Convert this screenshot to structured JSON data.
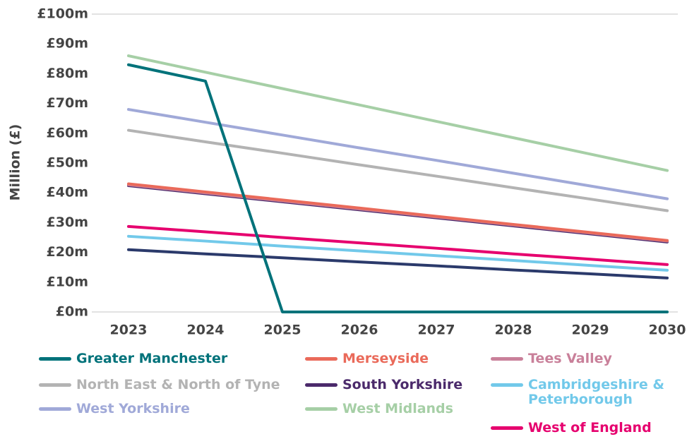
{
  "chart_data": {
    "type": "line",
    "y_label": "Million (£)",
    "categories": [
      "2023",
      "2024",
      "2025",
      "2026",
      "2027",
      "2028",
      "2029",
      "2030"
    ],
    "ylim": [
      0,
      100
    ],
    "yticks": [
      {
        "value": 0,
        "label": "£0m"
      },
      {
        "value": 10,
        "label": "£10m"
      },
      {
        "value": 20,
        "label": "£20m"
      },
      {
        "value": 30,
        "label": "£30m"
      },
      {
        "value": 40,
        "label": "£40m"
      },
      {
        "value": 50,
        "label": "£50m"
      },
      {
        "value": 60,
        "label": "£60m"
      },
      {
        "value": 70,
        "label": "£70m"
      },
      {
        "value": 80,
        "label": "£80m"
      },
      {
        "value": 90,
        "label": "£90m"
      },
      {
        "value": 100,
        "label": "£100m"
      }
    ],
    "grid": false,
    "series": [
      {
        "name": "Greater Manchester",
        "color": "#00727a",
        "values": [
          83,
          77.5,
          0,
          0,
          0,
          0,
          0,
          0
        ]
      },
      {
        "name": "Merseyside",
        "color": "#ea6a5a",
        "values": [
          43,
          40.3,
          37.6,
          34.9,
          32.1,
          29.4,
          26.7,
          24
        ]
      },
      {
        "name": "Tees Valley",
        "color": "#c9809a",
        "values": [
          42.7,
          40,
          37.3,
          34.6,
          31.9,
          29.2,
          26.5,
          23.8
        ]
      },
      {
        "name": "North East & North of Tyne",
        "color": "#b3b3b3",
        "values": [
          61,
          57.1,
          53.3,
          49.4,
          45.6,
          41.7,
          37.9,
          34
        ]
      },
      {
        "name": "South Yorkshire",
        "color": "#4b2a6b",
        "values": [
          42.4,
          39.7,
          37,
          34.3,
          31.6,
          28.9,
          26.2,
          23.5
        ]
      },
      {
        "name": "Cambridgeshire & Peterborough",
        "color": "#72c9ea",
        "values": [
          25.4,
          23.8,
          22.1,
          20.5,
          18.9,
          17.3,
          15.6,
          14
        ]
      },
      {
        "name": "West Yorkshire",
        "color": "#a0a9d8",
        "values": [
          68,
          63.7,
          59.4,
          55.1,
          50.9,
          46.6,
          42.3,
          38
        ]
      },
      {
        "name": "West Midlands",
        "color": "#a6cfa6",
        "values": [
          86,
          80.5,
          75,
          69.5,
          64,
          58.5,
          53,
          47.5
        ]
      },
      {
        "name": "West of England",
        "color": "#e6006e",
        "values": [
          28.7,
          26.9,
          25,
          23.2,
          21.4,
          19.5,
          17.7,
          15.9
        ]
      },
      {
        "color": "#2b3a6b",
        "values": [
          20.9,
          19.5,
          18.2,
          16.8,
          15.5,
          14.1,
          12.8,
          11.4
        ]
      }
    ]
  }
}
